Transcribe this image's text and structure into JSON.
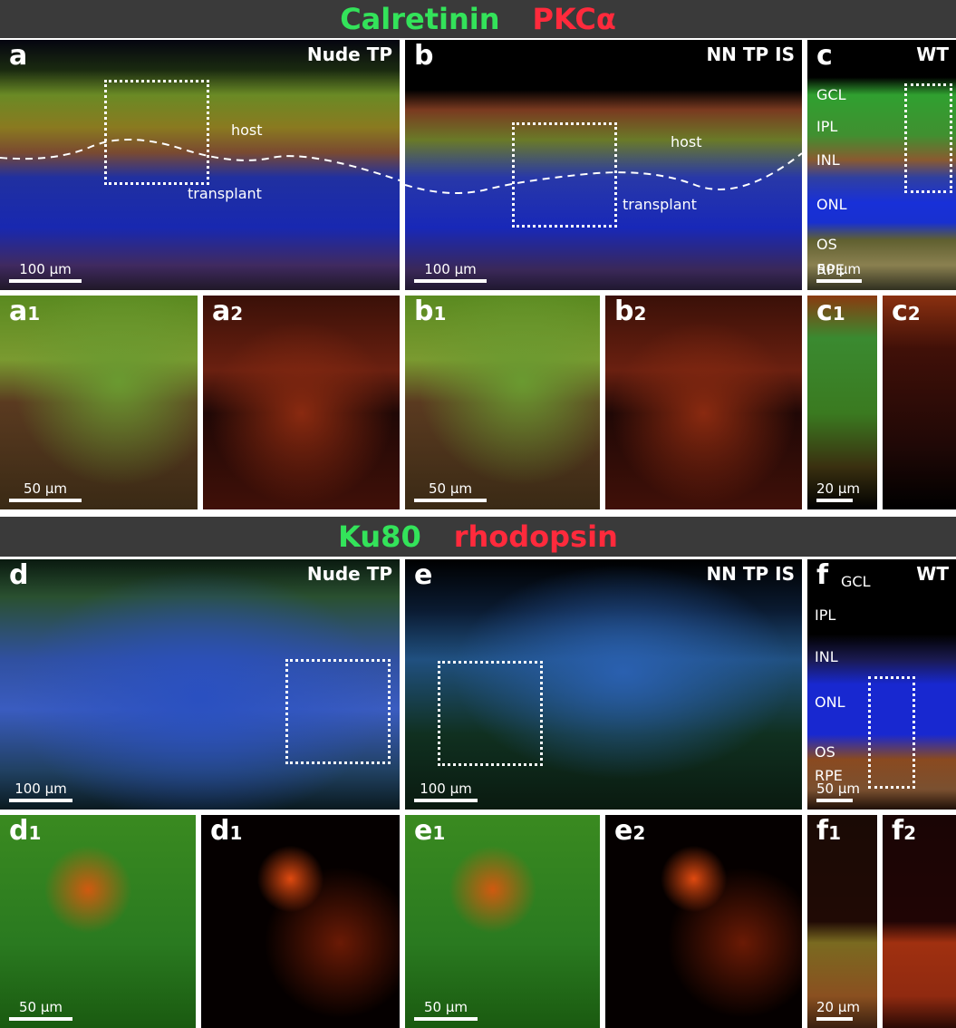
{
  "header1": {
    "left": "Calretinin",
    "right": "PKCα"
  },
  "header2": {
    "left": "Ku80",
    "right": "rhodopsin"
  },
  "panels": [
    {
      "label": "a",
      "tag": "Nude TP",
      "scale_bar": "100 µm",
      "annotations": [
        "host",
        "transplant"
      ]
    },
    {
      "label": "b",
      "tag": "NN TP IS",
      "scale_bar": "100 µm",
      "annotations": [
        "host",
        "transplant"
      ]
    },
    {
      "label": "c",
      "tag": "WT",
      "scale_bar": "50 µm",
      "annotations": [
        "GCL",
        "IPL",
        "INL",
        "ONL",
        "OS",
        "RPE"
      ]
    },
    {
      "label": "a",
      "sub": "1",
      "scale_bar": "50 µm"
    },
    {
      "label": "a",
      "sub": "2"
    },
    {
      "label": "b",
      "sub": "1",
      "scale_bar": "50 µm"
    },
    {
      "label": "b",
      "sub": "2"
    },
    {
      "label": "c",
      "sub": "1",
      "scale_bar": "20 µm"
    },
    {
      "label": "c",
      "sub": "2"
    },
    {
      "label": "d",
      "tag": "Nude TP",
      "scale_bar": "100 µm"
    },
    {
      "label": "e",
      "tag": "NN TP IS",
      "scale_bar": "100 µm"
    },
    {
      "label": "f",
      "tag": "WT",
      "scale_bar": "50 µm",
      "annotations": [
        "GCL",
        "IPL",
        "INL",
        "ONL",
        "OS",
        "RPE"
      ]
    },
    {
      "label": "d",
      "sub": "1",
      "scale_bar": "50 µm"
    },
    {
      "label": "d",
      "sub": "1"
    },
    {
      "label": "e",
      "sub": "1",
      "scale_bar": "50 µm"
    },
    {
      "label": "e",
      "sub": "2"
    },
    {
      "label": "f",
      "sub": "1",
      "scale_bar": "20 µm"
    },
    {
      "label": "f",
      "sub": "2"
    }
  ]
}
